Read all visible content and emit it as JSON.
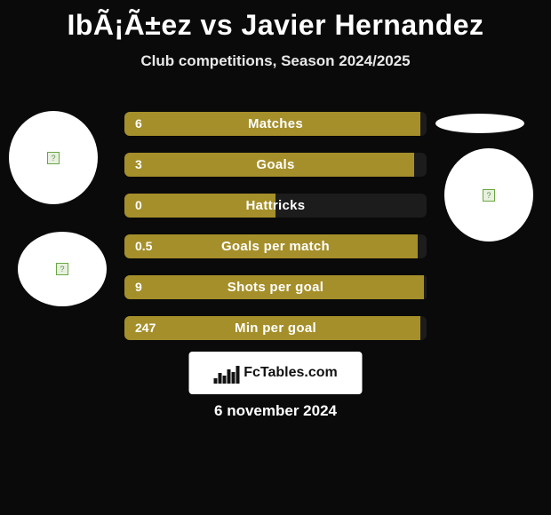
{
  "title": "IbÃ¡Ã±ez vs Javier Hernandez",
  "subtitle": "Club competitions, Season 2024/2025",
  "date": "6 november 2024",
  "logo_text": "FcTables.com",
  "colors": {
    "background": "#0a0a0a",
    "bar_olive": "#a58f2a",
    "bar_dark": "#1c1c1c",
    "text": "#ffffff"
  },
  "bars": [
    {
      "label": "Matches",
      "left_value": "6",
      "left_pct": 98,
      "right_pct": 2
    },
    {
      "label": "Goals",
      "left_value": "3",
      "left_pct": 96,
      "right_pct": 4
    },
    {
      "label": "Hattricks",
      "left_value": "0",
      "left_pct": 50,
      "right_pct": 50
    },
    {
      "label": "Goals per match",
      "left_value": "0.5",
      "left_pct": 97,
      "right_pct": 3
    },
    {
      "label": "Shots per goal",
      "left_value": "9",
      "left_pct": 99,
      "right_pct": 1
    },
    {
      "label": "Min per goal",
      "left_value": "247",
      "left_pct": 98,
      "right_pct": 2
    }
  ]
}
